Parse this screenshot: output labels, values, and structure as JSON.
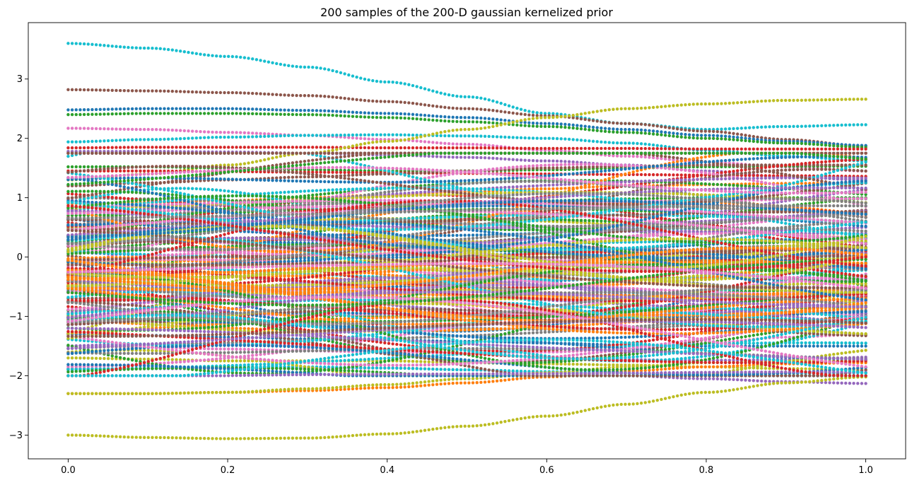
{
  "chart_data": {
    "type": "scatter",
    "title": "200 samples of the 200-D gaussian kernelized prior",
    "xlabel": "",
    "ylabel": "",
    "xlim": [
      -0.05,
      1.05
    ],
    "ylim": [
      -3.4,
      3.95
    ],
    "grid": false,
    "legend": "none",
    "x_ticks": [
      0.0,
      0.2,
      0.4,
      0.6,
      0.8,
      1.0
    ],
    "x_tick_labels": [
      "0.0",
      "0.2",
      "0.4",
      "0.6",
      "0.8",
      "1.0"
    ],
    "y_ticks": [
      -3,
      -2,
      -1,
      0,
      1,
      2,
      3
    ],
    "y_tick_labels": [
      "−3",
      "−2",
      "−1",
      "0",
      "1",
      "2",
      "3"
    ],
    "x_grid": {
      "start": 0.0,
      "stop": 1.0,
      "num": 200
    },
    "n_samples": 200,
    "marker": "point",
    "color_cycle": [
      "#1f77b4",
      "#ff7f0e",
      "#2ca02c",
      "#d62728",
      "#9467bd",
      "#8c564b",
      "#e377c2",
      "#7f7f7f",
      "#bcbd22",
      "#17becf"
    ],
    "series": [
      {
        "x": [
          0.0,
          0.1,
          0.2,
          0.3,
          0.4,
          0.5,
          0.6,
          0.7,
          0.8,
          0.9,
          1.0
        ],
        "y": [
          3.6,
          3.52,
          3.38,
          3.2,
          2.95,
          2.7,
          2.42,
          2.25,
          2.15,
          2.2,
          2.23
        ],
        "color": "#17becf"
      },
      {
        "x": [
          0.0,
          0.1,
          0.2,
          0.3,
          0.4,
          0.5,
          0.6,
          0.7,
          0.8,
          0.9,
          1.0
        ],
        "y": [
          2.82,
          2.8,
          2.77,
          2.72,
          2.62,
          2.5,
          2.38,
          2.25,
          2.12,
          1.98,
          1.87
        ],
        "color": "#8c564b"
      },
      {
        "x": [
          0.0,
          0.1,
          0.2,
          0.3,
          0.4,
          0.5,
          0.6,
          0.7,
          0.8,
          0.9,
          1.0
        ],
        "y": [
          2.48,
          2.5,
          2.5,
          2.47,
          2.42,
          2.35,
          2.25,
          2.15,
          2.05,
          1.95,
          1.88
        ],
        "color": "#1f77b4"
      },
      {
        "x": [
          0.0,
          0.1,
          0.2,
          0.3,
          0.4,
          0.5,
          0.6,
          0.7,
          0.8,
          0.9,
          1.0
        ],
        "y": [
          2.4,
          2.42,
          2.42,
          2.4,
          2.35,
          2.28,
          2.2,
          2.1,
          2.0,
          1.92,
          1.85
        ],
        "color": "#2ca02c"
      },
      {
        "x": [
          0.0,
          0.1,
          0.2,
          0.3,
          0.4,
          0.5,
          0.6,
          0.7,
          0.8,
          0.9,
          1.0
        ],
        "y": [
          2.17,
          2.15,
          2.1,
          2.05,
          1.98,
          1.9,
          1.8,
          1.7,
          1.6,
          1.52,
          1.45
        ],
        "color": "#e377c2"
      },
      {
        "x": [
          0.0,
          0.1,
          0.2,
          0.3,
          0.4,
          0.5,
          0.6,
          0.7,
          0.8,
          0.9,
          1.0
        ],
        "y": [
          1.94,
          1.98,
          2.02,
          2.05,
          2.06,
          2.04,
          2.0,
          1.92,
          1.8,
          1.7,
          1.62
        ],
        "color": "#17becf"
      },
      {
        "x": [
          0.0,
          0.1,
          0.2,
          0.3,
          0.4,
          0.5,
          0.6,
          0.7,
          0.8,
          0.9,
          1.0
        ],
        "y": [
          1.84,
          1.85,
          1.85,
          1.85,
          1.84,
          1.84,
          1.83,
          1.83,
          1.82,
          1.82,
          1.82
        ],
        "color": "#d62728"
      },
      {
        "x": [
          0.0,
          0.1,
          0.2,
          0.3,
          0.4,
          0.5,
          0.6,
          0.7,
          0.8,
          0.9,
          1.0
        ],
        "y": [
          1.78,
          1.78,
          1.77,
          1.75,
          1.72,
          1.68,
          1.62,
          1.55,
          1.45,
          1.35,
          1.3
        ],
        "color": "#9467bd"
      },
      {
        "x": [
          0.0,
          0.1,
          0.2,
          0.3,
          0.4,
          0.5,
          0.6,
          0.7,
          0.8,
          0.9,
          1.0
        ],
        "y": [
          1.3,
          1.4,
          1.55,
          1.75,
          1.95,
          2.15,
          2.35,
          2.5,
          2.58,
          2.64,
          2.66
        ],
        "color": "#bcbd22"
      },
      {
        "x": [
          0.0,
          0.1,
          0.2,
          0.3,
          0.4,
          0.5,
          0.6,
          0.7,
          0.8,
          0.9,
          1.0
        ],
        "y": [
          1.52,
          1.52,
          1.5,
          1.47,
          1.45,
          1.45,
          1.47,
          1.5,
          1.52,
          1.53,
          1.53
        ],
        "color": "#2ca02c"
      },
      {
        "x": [
          0.0,
          0.1,
          0.2,
          0.3,
          0.4,
          0.5,
          0.6,
          0.7,
          0.8,
          0.9,
          1.0
        ],
        "y": [
          1.45,
          1.45,
          1.44,
          1.43,
          1.42,
          1.41,
          1.4,
          1.39,
          1.38,
          1.37,
          1.36
        ],
        "color": "#d62728"
      },
      {
        "x": [
          0.0,
          0.1,
          0.2,
          0.3,
          0.4,
          0.5,
          0.6,
          0.7,
          0.8,
          0.9,
          1.0
        ],
        "y": [
          1.2,
          1.25,
          1.3,
          1.35,
          1.4,
          1.45,
          1.5,
          1.53,
          1.55,
          1.55,
          1.55
        ],
        "color": "#8c564b"
      },
      {
        "x": [
          0.0,
          0.1,
          0.2,
          0.3,
          0.4,
          0.5,
          0.6,
          0.7,
          0.8,
          0.9,
          1.0
        ],
        "y": [
          0.9,
          0.92,
          0.95,
          1.0,
          1.05,
          1.1,
          1.15,
          1.2,
          1.22,
          1.24,
          1.25
        ],
        "color": "#ff7f0e"
      },
      {
        "x": [
          0.0,
          0.1,
          0.2,
          0.3,
          0.4,
          0.5,
          0.6,
          0.7,
          0.8,
          0.9,
          1.0
        ],
        "y": [
          1.0,
          0.98,
          0.95,
          0.92,
          0.9,
          0.88,
          0.9,
          0.93,
          0.96,
          0.98,
          0.98
        ],
        "color": "#7f7f7f"
      },
      {
        "x": [
          0.0,
          0.1,
          0.2,
          0.3,
          0.4,
          0.5,
          0.6,
          0.7,
          0.8,
          0.9,
          1.0
        ],
        "y": [
          0.7,
          0.72,
          0.75,
          0.8,
          0.85,
          0.9,
          0.95,
          0.98,
          1.0,
          1.0,
          1.0
        ],
        "color": "#2ca02c"
      },
      {
        "x": [
          0.0,
          0.1,
          0.2,
          0.3,
          0.4,
          0.5,
          0.6,
          0.7,
          0.8,
          0.9,
          1.0
        ],
        "y": [
          0.5,
          0.55,
          0.6,
          0.62,
          0.6,
          0.55,
          0.5,
          0.45,
          0.42,
          0.4,
          0.4
        ],
        "color": "#9467bd"
      },
      {
        "x": [
          0.0,
          0.1,
          0.2,
          0.3,
          0.4,
          0.5,
          0.6,
          0.7,
          0.8,
          0.9,
          1.0
        ],
        "y": [
          0.3,
          0.28,
          0.25,
          0.22,
          0.2,
          0.2,
          0.22,
          0.25,
          0.28,
          0.3,
          0.3
        ],
        "color": "#17becf"
      },
      {
        "x": [
          0.0,
          0.1,
          0.2,
          0.3,
          0.4,
          0.5,
          0.6,
          0.7,
          0.8,
          0.9,
          1.0
        ],
        "y": [
          0.1,
          0.12,
          0.15,
          0.18,
          0.2,
          0.22,
          0.2,
          0.15,
          0.1,
          0.05,
          0.0
        ],
        "color": "#e377c2"
      },
      {
        "x": [
          0.0,
          0.1,
          0.2,
          0.3,
          0.4,
          0.5,
          0.6,
          0.7,
          0.8,
          0.9,
          1.0
        ],
        "y": [
          -0.1,
          -0.12,
          -0.15,
          -0.1,
          -0.05,
          0.0,
          0.05,
          0.1,
          0.12,
          0.15,
          0.15
        ],
        "color": "#bcbd22"
      },
      {
        "x": [
          0.0,
          0.1,
          0.2,
          0.3,
          0.4,
          0.5,
          0.6,
          0.7,
          0.8,
          0.9,
          1.0
        ],
        "y": [
          -0.3,
          -0.28,
          -0.25,
          -0.2,
          -0.15,
          -0.12,
          -0.1,
          -0.1,
          -0.12,
          -0.15,
          -0.18
        ],
        "color": "#d62728"
      },
      {
        "x": [
          0.0,
          0.1,
          0.2,
          0.3,
          0.4,
          0.5,
          0.6,
          0.7,
          0.8,
          0.9,
          1.0
        ],
        "y": [
          -0.5,
          -0.52,
          -0.55,
          -0.55,
          -0.5,
          -0.45,
          -0.4,
          -0.35,
          -0.35,
          -0.38,
          -0.4
        ],
        "color": "#1f77b4"
      },
      {
        "x": [
          0.0,
          0.1,
          0.2,
          0.3,
          0.4,
          0.5,
          0.6,
          0.7,
          0.8,
          0.9,
          1.0
        ],
        "y": [
          -0.7,
          -0.68,
          -0.65,
          -0.6,
          -0.55,
          -0.55,
          -0.6,
          -0.65,
          -0.7,
          -0.72,
          -0.72
        ],
        "color": "#8c564b"
      },
      {
        "x": [
          0.0,
          0.1,
          0.2,
          0.3,
          0.4,
          0.5,
          0.6,
          0.7,
          0.8,
          0.9,
          1.0
        ],
        "y": [
          -0.9,
          -0.92,
          -0.95,
          -0.98,
          -1.0,
          -0.98,
          -0.95,
          -0.9,
          -0.88,
          -0.86,
          -0.85
        ],
        "color": "#2ca02c"
      },
      {
        "x": [
          0.0,
          0.1,
          0.2,
          0.3,
          0.4,
          0.5,
          0.6,
          0.7,
          0.8,
          0.9,
          1.0
        ],
        "y": [
          -1.1,
          -1.1,
          -1.12,
          -1.15,
          -1.18,
          -1.2,
          -1.22,
          -1.2,
          -1.15,
          -1.1,
          -1.05
        ],
        "color": "#7f7f7f"
      },
      {
        "x": [
          0.0,
          0.1,
          0.2,
          0.3,
          0.4,
          0.5,
          0.6,
          0.7,
          0.8,
          0.9,
          1.0
        ],
        "y": [
          -1.3,
          -1.32,
          -1.35,
          -1.38,
          -1.4,
          -1.42,
          -1.45,
          -1.48,
          -1.5,
          -1.5,
          -1.5
        ],
        "color": "#1f77b4"
      },
      {
        "x": [
          0.0,
          0.1,
          0.2,
          0.3,
          0.4,
          0.5,
          0.6,
          0.7,
          0.8,
          0.9,
          1.0
        ],
        "y": [
          -1.5,
          -1.52,
          -1.55,
          -1.58,
          -1.6,
          -1.62,
          -1.6,
          -1.55,
          -1.45,
          -1.35,
          -1.3
        ],
        "color": "#e377c2"
      },
      {
        "x": [
          0.0,
          0.1,
          0.2,
          0.3,
          0.4,
          0.5,
          0.6,
          0.7,
          0.8,
          0.9,
          1.0
        ],
        "y": [
          -1.7,
          -1.72,
          -1.75,
          -1.75,
          -1.75,
          -1.78,
          -1.8,
          -1.82,
          -1.85,
          -1.88,
          -1.9
        ],
        "color": "#bcbd22"
      },
      {
        "x": [
          0.0,
          0.1,
          0.2,
          0.3,
          0.4,
          0.5,
          0.6,
          0.7,
          0.8,
          0.9,
          1.0
        ],
        "y": [
          -1.88,
          -1.88,
          -1.88,
          -1.87,
          -1.87,
          -1.9,
          -1.95,
          -2.0,
          -2.05,
          -2.1,
          -2.13
        ],
        "color": "#9467bd"
      },
      {
        "x": [
          0.0,
          0.1,
          0.2,
          0.3,
          0.4,
          0.5,
          0.6,
          0.7,
          0.8,
          0.9,
          1.0
        ],
        "y": [
          -1.9,
          -1.88,
          -1.85,
          -1.85,
          -1.87,
          -1.9,
          -1.93,
          -1.96,
          -1.97,
          -1.96,
          -1.95
        ],
        "color": "#17becf"
      },
      {
        "x": [
          0.0,
          0.1,
          0.2,
          0.3,
          0.4,
          0.5,
          0.6,
          0.7,
          0.8,
          0.9,
          1.0
        ],
        "y": [
          -2.3,
          -2.3,
          -2.28,
          -2.25,
          -2.2,
          -2.12,
          -2.02,
          -1.92,
          -1.85,
          -1.8,
          -1.78
        ],
        "color": "#ff7f0e"
      },
      {
        "x": [
          0.0,
          0.1,
          0.2,
          0.3,
          0.4,
          0.5,
          0.6,
          0.7,
          0.8,
          0.9,
          1.0
        ],
        "y": [
          -2.3,
          -2.3,
          -2.28,
          -2.22,
          -2.15,
          -2.05,
          -1.95,
          -1.85,
          -1.78,
          -1.75,
          -1.75
        ],
        "color": "#bcbd22"
      },
      {
        "x": [
          0.0,
          0.1,
          0.2,
          0.3,
          0.4,
          0.5,
          0.6,
          0.7,
          0.8,
          0.9,
          1.0
        ],
        "y": [
          -3.0,
          -3.04,
          -3.06,
          -3.05,
          -2.98,
          -2.85,
          -2.68,
          -2.48,
          -2.28,
          -2.12,
          -2.02
        ],
        "color": "#bcbd22"
      }
    ]
  }
}
